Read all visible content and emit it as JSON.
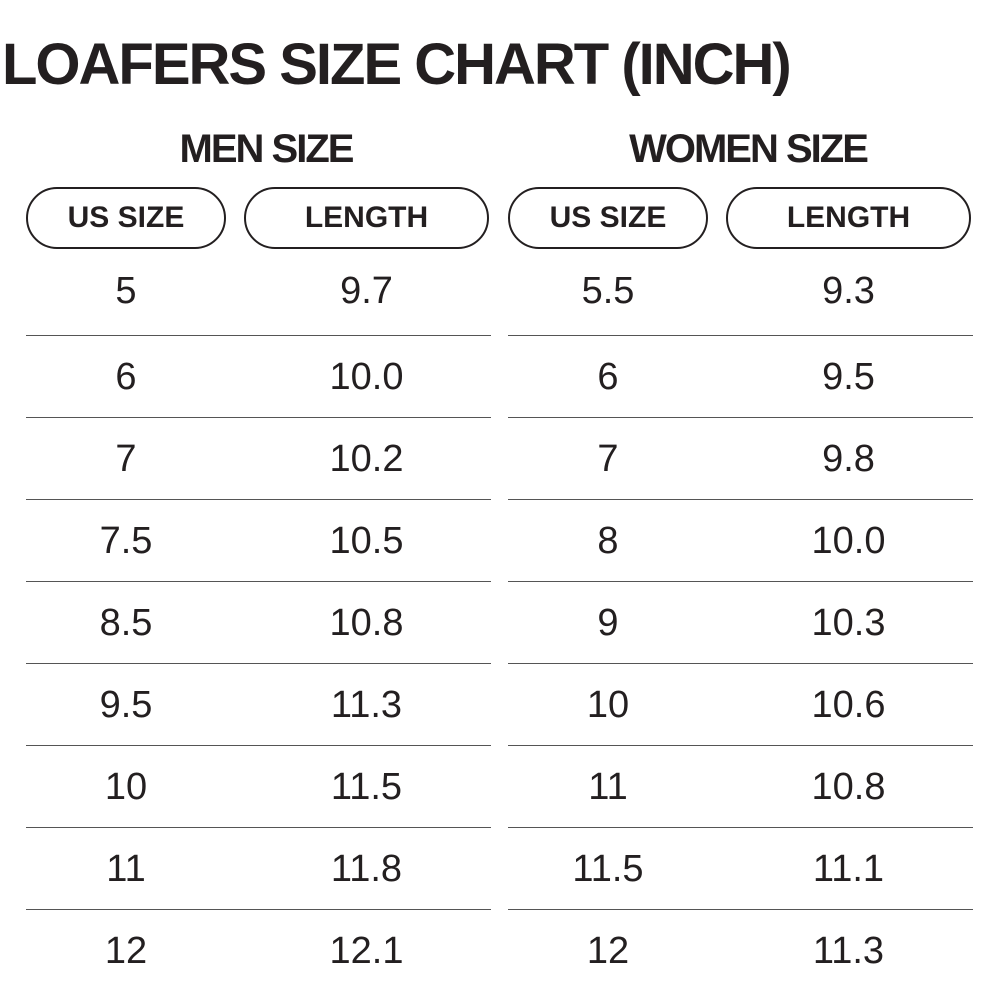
{
  "title": "LOAFERS SIZE CHART (INCH)",
  "men": {
    "heading": "MEN SIZE",
    "col_us": "US SIZE",
    "col_length": "LENGTH",
    "rows": [
      {
        "us": "5",
        "length": "9.7"
      },
      {
        "us": "6",
        "length": "10.0"
      },
      {
        "us": "7",
        "length": "10.2"
      },
      {
        "us": "7.5",
        "length": "10.5"
      },
      {
        "us": "8.5",
        "length": "10.8"
      },
      {
        "us": "9.5",
        "length": "11.3"
      },
      {
        "us": "10",
        "length": "11.5"
      },
      {
        "us": "11",
        "length": "11.8"
      },
      {
        "us": "12",
        "length": "12.1"
      }
    ]
  },
  "women": {
    "heading": "WOMEN SIZE",
    "col_us": "US SIZE",
    "col_length": "LENGTH",
    "rows": [
      {
        "us": "5.5",
        "length": "9.3"
      },
      {
        "us": "6",
        "length": "9.5"
      },
      {
        "us": "7",
        "length": "9.8"
      },
      {
        "us": "8",
        "length": "10.0"
      },
      {
        "us": "9",
        "length": "10.3"
      },
      {
        "us": "10",
        "length": "10.6"
      },
      {
        "us": "11",
        "length": "10.8"
      },
      {
        "us": "11.5",
        "length": "11.1"
      },
      {
        "us": "12",
        "length": "11.3"
      }
    ]
  },
  "colors": {
    "text": "#231f20",
    "divider": "#555555",
    "background": "#ffffff"
  }
}
